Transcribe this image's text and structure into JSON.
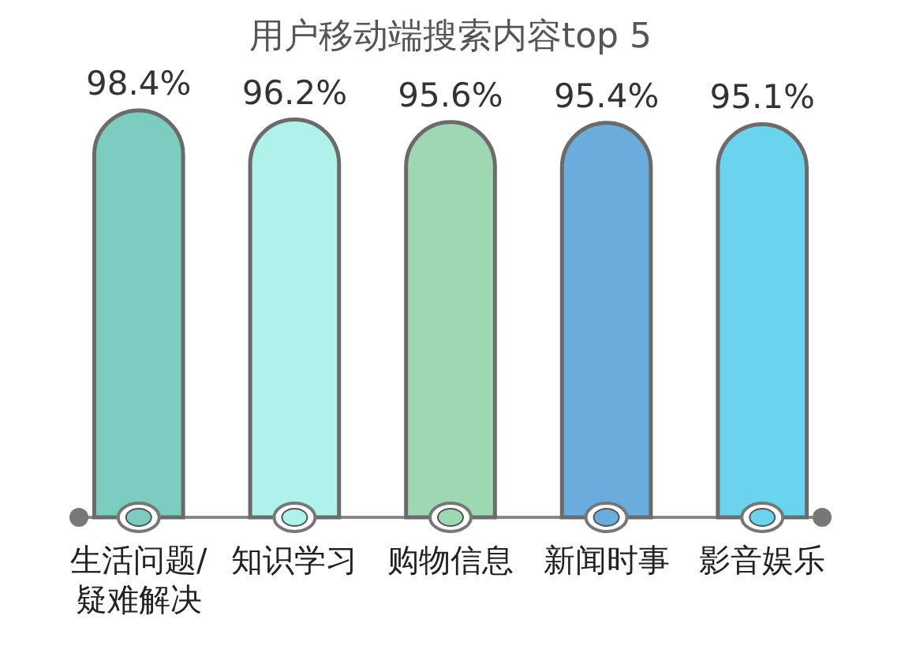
{
  "chart_data": {
    "type": "bar",
    "title": "用户移动端搜索内容top 5",
    "categories": [
      "生活问题/疑难解决",
      "知识学习",
      "购物信息",
      "新闻时事",
      "影音娱乐"
    ],
    "values": [
      98.4,
      96.2,
      95.6,
      95.4,
      95.1
    ],
    "colors": [
      "#7ccdbf",
      "#aff2e9",
      "#9dd8b2",
      "#6aacdc",
      "#6ad4ef"
    ],
    "value_labels": [
      "98.4%",
      "96.2%",
      "95.6%",
      "95.4%",
      "95.1%"
    ],
    "tick_labels": "x"
  }
}
